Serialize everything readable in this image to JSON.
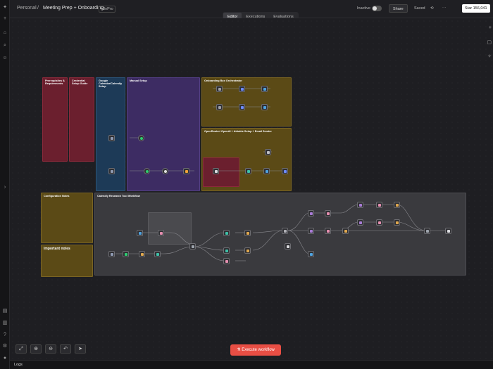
{
  "header": {
    "workspace": "Personal",
    "separator": "/",
    "title": "Meeting Prep + Onboarding",
    "tag": "n8nPro",
    "status_label": "Inactive",
    "share_label": "Share",
    "saved_label": "Saved",
    "star_label": "Star",
    "star_count": "156,041"
  },
  "tabs": [
    {
      "label": "Editor",
      "active": true
    },
    {
      "label": "Executions",
      "active": false
    },
    {
      "label": "Evaluations",
      "active": false
    }
  ],
  "notes": {
    "prereq": {
      "title": "Prerequisites & Requirements"
    },
    "credential": {
      "title": "Credential Setup Guide"
    },
    "google": {
      "title": "Google Calendar/Calendly Setup"
    },
    "manual": {
      "title": "Manual Setup"
    },
    "orchestrator": {
      "title": "Onboarding Box Orchestrator"
    },
    "openrouter": {
      "title": "OpenRouter/ OpenAI + Airtable Setup + Email Sender"
    },
    "config": {
      "title": "Configuration Notes"
    },
    "important": {
      "title": "Important notes"
    },
    "calendly": {
      "title": "Calendly Research Tool Workflow"
    }
  },
  "controls": {
    "execute_label": "Execute workflow",
    "logs_label": "Logs"
  },
  "colors": {
    "accent": "#e84e44",
    "note_red": "#6b1f2e",
    "note_blue": "#1d3a57",
    "note_purple": "#3d2c63",
    "note_olive": "#5b4a16",
    "note_gray": "#3a3a3e"
  }
}
